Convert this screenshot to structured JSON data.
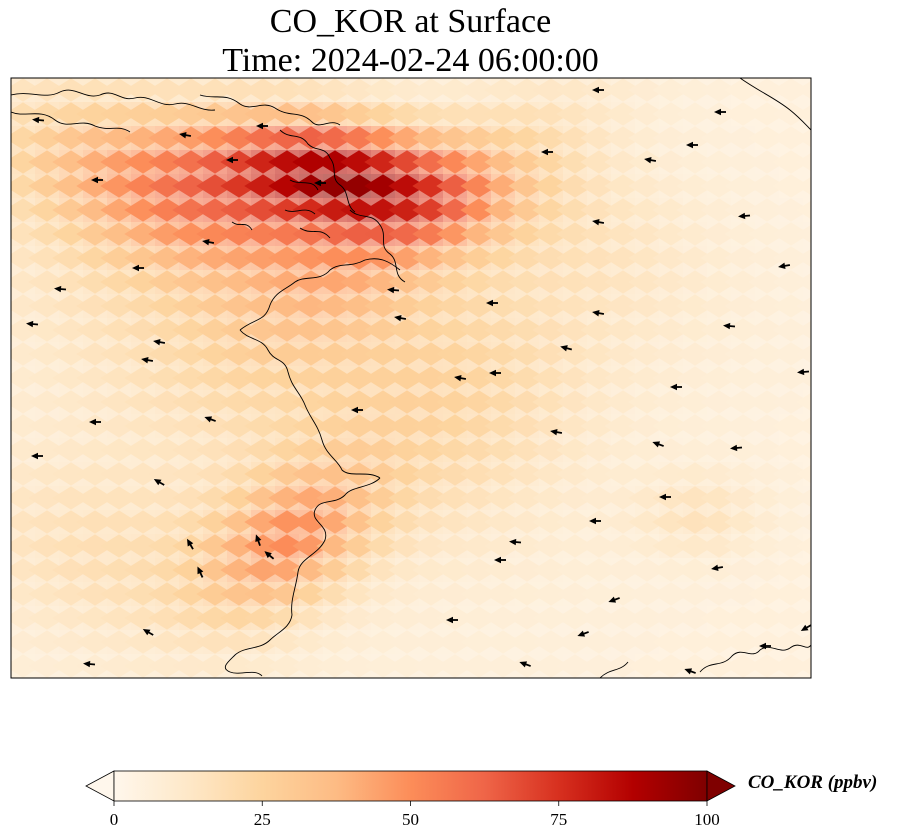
{
  "title": {
    "line1": "CO_KOR at Surface",
    "line2": "Time: 2024-02-24 06:00:00"
  },
  "colorbar": {
    "label": "CO_KOR (ppbv)",
    "ticks": [
      "0",
      "25",
      "50",
      "75",
      "100"
    ],
    "range": [
      0,
      100
    ],
    "colormap": "OrRd",
    "extend": "both"
  },
  "colors": {
    "low": "#fff7ec",
    "mid": "#fc8d59",
    "high": "#7f0000",
    "coastline": "#000000",
    "wind_arrow": "#000000"
  },
  "map": {
    "field": "CO_KOR",
    "level": "Surface",
    "overlays": [
      "coastline",
      "wind vectors"
    ]
  }
}
